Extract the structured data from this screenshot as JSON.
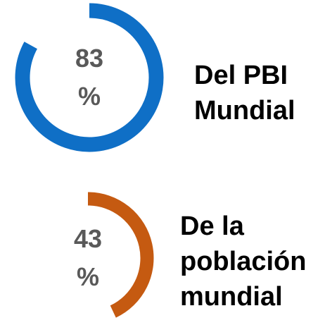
{
  "chart_data": [
    {
      "type": "donut",
      "values": [
        83
      ],
      "value_labels": [
        "83 %"
      ],
      "color": "#0f6fc6",
      "title": "Del PBI Mundial"
    },
    {
      "type": "donut",
      "values": [
        43
      ],
      "value_labels": [
        "43 %"
      ],
      "color": "#c55a11",
      "title": "De la población mundial"
    }
  ]
}
